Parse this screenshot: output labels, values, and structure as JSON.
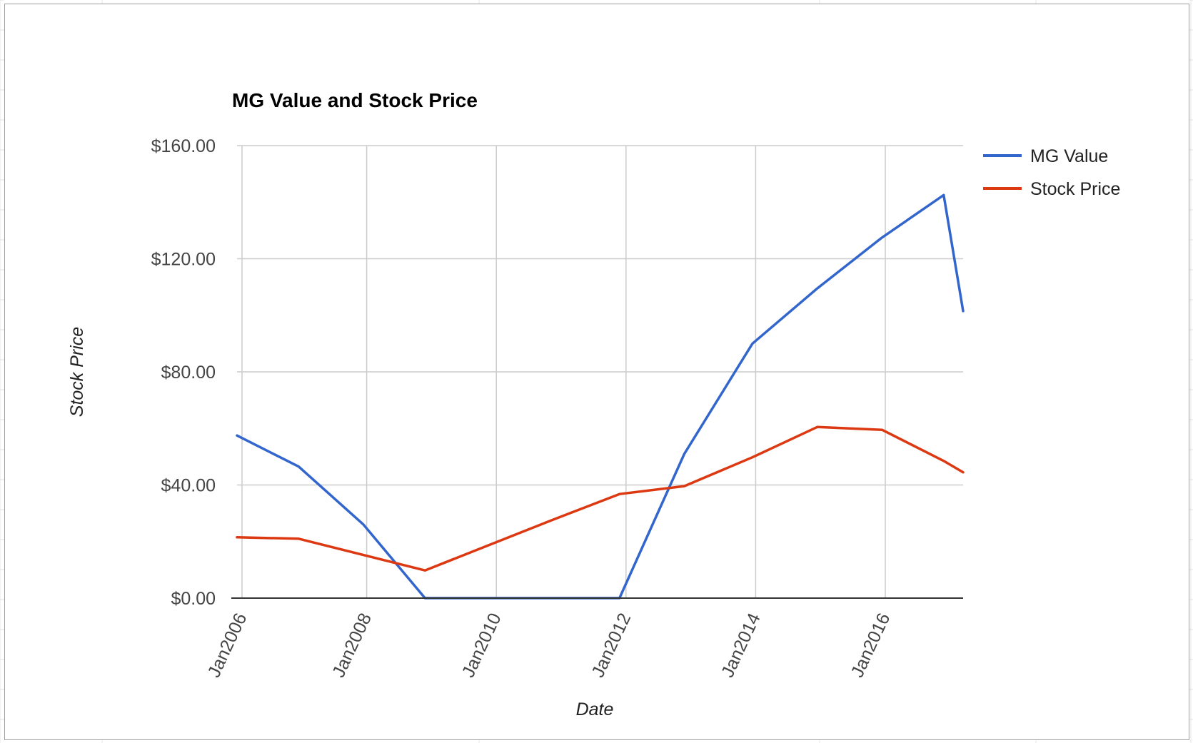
{
  "chart_data": {
    "type": "line",
    "title": "MG Value and Stock Price",
    "xlabel": "Date",
    "ylabel": "Stock Price",
    "y_tick_labels": [
      "$0.00",
      "$40.00",
      "$80.00",
      "$120.00",
      "$160.00"
    ],
    "y_ticks": [
      0,
      40,
      80,
      120,
      160
    ],
    "ylim": [
      0,
      160
    ],
    "x_tick_labels": [
      "Jan2006",
      "Jan2008",
      "Jan2010",
      "Jan2012",
      "Jan2014",
      "Jan2016"
    ],
    "x_ticks": [
      2006,
      2008,
      2010,
      2012,
      2014,
      2016
    ],
    "xlim": [
      2006,
      2017.2
    ],
    "grid": true,
    "legend_position": "right",
    "series": [
      {
        "name": "MG Value",
        "color": "#3366cc",
        "x": [
          2006,
          2006.95,
          2007.95,
          2008.9,
          2011.9,
          2012.9,
          2013.95,
          2014.95,
          2015.95,
          2016.9,
          2017.2
        ],
        "values": [
          57.5,
          46.5,
          26,
          0,
          0,
          51,
          90,
          109.5,
          127.5,
          142.5,
          101.5
        ]
      },
      {
        "name": "Stock Price",
        "color": "#dc3912",
        "x": [
          2006,
          2006.95,
          2008.9,
          2010.85,
          2011.9,
          2012.9,
          2013.95,
          2014.95,
          2015.95,
          2016.9,
          2017.2
        ],
        "values": [
          21.5,
          21,
          9.8,
          27.5,
          36.8,
          39.6,
          49.8,
          60.5,
          59.5,
          48.5,
          44.5
        ]
      }
    ]
  }
}
